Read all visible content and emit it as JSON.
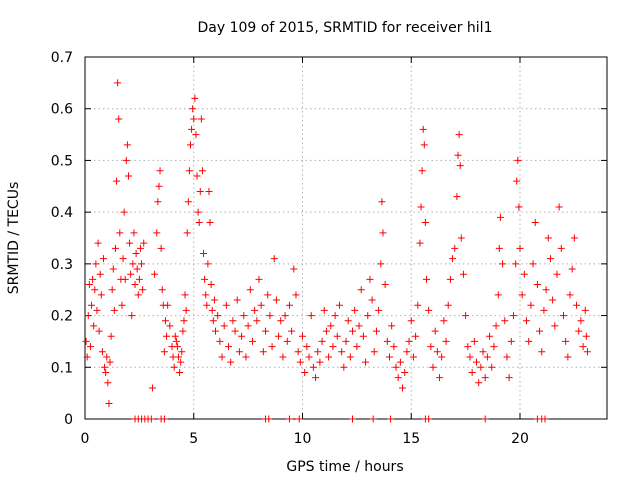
{
  "chart_data": {
    "type": "scatter",
    "title": "Day 109 of 2015, SRMTID for receiver hil1",
    "xlabel": "GPS time / hours",
    "ylabel": "SRMTID / TECUs",
    "xlim": [
      0,
      24
    ],
    "ylim": [
      0,
      0.7
    ],
    "xticks": [
      0,
      5,
      10,
      15,
      20
    ],
    "xtick_labels": [
      "0",
      "5",
      "10",
      "15",
      "20"
    ],
    "yticks": [
      0,
      0.1,
      0.2,
      0.3,
      0.4,
      0.5,
      0.6,
      0.7
    ],
    "ytick_labels": [
      "0",
      "0.1",
      "0.2",
      "0.3",
      "0.4",
      "0.5",
      "0.6",
      "0.7"
    ],
    "grid": true,
    "marker": "+",
    "series": [
      {
        "name": "SRMTID",
        "color": "#ff0000",
        "points": [
          [
            0.05,
            0.15
          ],
          [
            0.1,
            0.12
          ],
          [
            0.15,
            0.2
          ],
          [
            0.2,
            0.26
          ],
          [
            0.25,
            0.14
          ],
          [
            0.3,
            0.22
          ],
          [
            0.35,
            0.27
          ],
          [
            0.4,
            0.18
          ],
          [
            0.45,
            0.25
          ],
          [
            0.5,
            0.3
          ],
          [
            0.55,
            0.21
          ],
          [
            0.6,
            0.34
          ],
          [
            0.65,
            0.17
          ],
          [
            0.7,
            0.28
          ],
          [
            0.75,
            0.24
          ],
          [
            0.8,
            0.13
          ],
          [
            0.85,
            0.31
          ],
          [
            0.9,
            0.1
          ],
          [
            0.95,
            0.09
          ],
          [
            1.0,
            0.12
          ],
          [
            1.05,
            0.07
          ],
          [
            1.1,
            0.03
          ],
          [
            1.15,
            0.11
          ],
          [
            1.2,
            0.16
          ],
          [
            1.25,
            0.25
          ],
          [
            1.3,
            0.29
          ],
          [
            1.35,
            0.21
          ],
          [
            1.4,
            0.33
          ],
          [
            1.45,
            0.46
          ],
          [
            1.5,
            0.65
          ],
          [
            1.55,
            0.58
          ],
          [
            1.6,
            0.36
          ],
          [
            1.65,
            0.27
          ],
          [
            1.7,
            0.22
          ],
          [
            1.75,
            0.31
          ],
          [
            1.8,
            0.4
          ],
          [
            1.85,
            0.27
          ],
          [
            1.9,
            0.5
          ],
          [
            1.95,
            0.53
          ],
          [
            2.0,
            0.47
          ],
          [
            2.05,
            0.34
          ],
          [
            2.1,
            0.28
          ],
          [
            2.15,
            0.2
          ],
          [
            2.2,
            0.3
          ],
          [
            2.25,
            0.36
          ],
          [
            2.3,
            0.26
          ],
          [
            2.35,
            0.32
          ],
          [
            2.4,
            0.29
          ],
          [
            2.45,
            0.24
          ],
          [
            2.5,
            0.27
          ],
          [
            2.55,
            0.33
          ],
          [
            2.6,
            0.3
          ],
          [
            2.65,
            0.25
          ],
          [
            2.7,
            0.34
          ],
          [
            3.1,
            0.06
          ],
          [
            3.2,
            0.28
          ],
          [
            3.3,
            0.36
          ],
          [
            3.35,
            0.42
          ],
          [
            3.4,
            0.45
          ],
          [
            3.45,
            0.48
          ],
          [
            3.5,
            0.33
          ],
          [
            3.55,
            0.25
          ],
          [
            3.6,
            0.22
          ],
          [
            3.65,
            0.13
          ],
          [
            3.7,
            0.19
          ],
          [
            3.75,
            0.16
          ],
          [
            3.8,
            0.22
          ],
          [
            3.9,
            0.18
          ],
          [
            4.0,
            0.14
          ],
          [
            4.05,
            0.12
          ],
          [
            4.1,
            0.1
          ],
          [
            4.15,
            0.16
          ],
          [
            4.2,
            0.15
          ],
          [
            4.25,
            0.14
          ],
          [
            4.3,
            0.12
          ],
          [
            4.35,
            0.09
          ],
          [
            4.4,
            0.11
          ],
          [
            4.45,
            0.13
          ],
          [
            4.5,
            0.17
          ],
          [
            4.55,
            0.19
          ],
          [
            4.6,
            0.24
          ],
          [
            4.65,
            0.21
          ],
          [
            4.7,
            0.36
          ],
          [
            4.75,
            0.42
          ],
          [
            4.8,
            0.48
          ],
          [
            4.85,
            0.53
          ],
          [
            4.9,
            0.56
          ],
          [
            4.95,
            0.6
          ],
          [
            5.0,
            0.58
          ],
          [
            5.05,
            0.62
          ],
          [
            5.1,
            0.55
          ],
          [
            5.15,
            0.47
          ],
          [
            5.2,
            0.4
          ],
          [
            5.25,
            0.38
          ],
          [
            5.3,
            0.44
          ],
          [
            5.35,
            0.58
          ],
          [
            5.4,
            0.48
          ],
          [
            5.45,
            0.32
          ],
          [
            5.5,
            0.27
          ],
          [
            5.55,
            0.24
          ],
          [
            5.6,
            0.22
          ],
          [
            5.65,
            0.3
          ],
          [
            5.7,
            0.44
          ],
          [
            5.75,
            0.38
          ],
          [
            5.8,
            0.26
          ],
          [
            5.85,
            0.21
          ],
          [
            5.9,
            0.19
          ],
          [
            5.95,
            0.23
          ],
          [
            6.0,
            0.17
          ],
          [
            6.1,
            0.2
          ],
          [
            6.2,
            0.15
          ],
          [
            6.3,
            0.12
          ],
          [
            6.4,
            0.18
          ],
          [
            6.5,
            0.22
          ],
          [
            6.6,
            0.14
          ],
          [
            6.7,
            0.11
          ],
          [
            6.8,
            0.19
          ],
          [
            6.9,
            0.17
          ],
          [
            7.0,
            0.23
          ],
          [
            7.1,
            0.13
          ],
          [
            7.2,
            0.16
          ],
          [
            7.3,
            0.2
          ],
          [
            7.4,
            0.12
          ],
          [
            7.5,
            0.18
          ],
          [
            7.6,
            0.25
          ],
          [
            7.7,
            0.15
          ],
          [
            7.8,
            0.21
          ],
          [
            7.9,
            0.19
          ],
          [
            8.0,
            0.27
          ],
          [
            8.1,
            0.22
          ],
          [
            8.2,
            0.13
          ],
          [
            8.3,
            0.17
          ],
          [
            8.4,
            0.24
          ],
          [
            8.5,
            0.2
          ],
          [
            8.6,
            0.14
          ],
          [
            8.7,
            0.31
          ],
          [
            8.8,
            0.23
          ],
          [
            8.9,
            0.16
          ],
          [
            9.0,
            0.19
          ],
          [
            9.1,
            0.12
          ],
          [
            9.2,
            0.2
          ],
          [
            9.3,
            0.15
          ],
          [
            9.4,
            0.22
          ],
          [
            9.5,
            0.17
          ],
          [
            9.6,
            0.29
          ],
          [
            9.7,
            0.24
          ],
          [
            9.8,
            0.13
          ],
          [
            9.9,
            0.11
          ],
          [
            10.0,
            0.16
          ],
          [
            10.1,
            0.09
          ],
          [
            10.2,
            0.14
          ],
          [
            10.3,
            0.12
          ],
          [
            10.4,
            0.2
          ],
          [
            10.5,
            0.1
          ],
          [
            10.6,
            0.08
          ],
          [
            10.7,
            0.13
          ],
          [
            10.8,
            0.11
          ],
          [
            10.9,
            0.15
          ],
          [
            11.0,
            0.21
          ],
          [
            11.1,
            0.17
          ],
          [
            11.2,
            0.12
          ],
          [
            11.3,
            0.18
          ],
          [
            11.4,
            0.14
          ],
          [
            11.5,
            0.2
          ],
          [
            11.6,
            0.16
          ],
          [
            11.7,
            0.22
          ],
          [
            11.8,
            0.13
          ],
          [
            11.9,
            0.1
          ],
          [
            12.0,
            0.15
          ],
          [
            12.1,
            0.19
          ],
          [
            12.2,
            0.12
          ],
          [
            12.3,
            0.17
          ],
          [
            12.4,
            0.21
          ],
          [
            12.5,
            0.14
          ],
          [
            12.6,
            0.18
          ],
          [
            12.7,
            0.25
          ],
          [
            12.8,
            0.16
          ],
          [
            12.9,
            0.11
          ],
          [
            13.0,
            0.2
          ],
          [
            13.1,
            0.27
          ],
          [
            13.2,
            0.23
          ],
          [
            13.3,
            0.13
          ],
          [
            13.4,
            0.17
          ],
          [
            13.5,
            0.21
          ],
          [
            13.6,
            0.3
          ],
          [
            13.65,
            0.42
          ],
          [
            13.7,
            0.36
          ],
          [
            13.8,
            0.26
          ],
          [
            13.9,
            0.15
          ],
          [
            14.0,
            0.12
          ],
          [
            14.1,
            0.18
          ],
          [
            14.2,
            0.14
          ],
          [
            14.3,
            0.1
          ],
          [
            14.4,
            0.08
          ],
          [
            14.5,
            0.11
          ],
          [
            14.6,
            0.06
          ],
          [
            14.7,
            0.09
          ],
          [
            14.8,
            0.13
          ],
          [
            14.9,
            0.15
          ],
          [
            15.0,
            0.19
          ],
          [
            15.1,
            0.12
          ],
          [
            15.2,
            0.16
          ],
          [
            15.3,
            0.22
          ],
          [
            15.4,
            0.34
          ],
          [
            15.45,
            0.41
          ],
          [
            15.5,
            0.48
          ],
          [
            15.55,
            0.56
          ],
          [
            15.6,
            0.53
          ],
          [
            15.65,
            0.38
          ],
          [
            15.7,
            0.27
          ],
          [
            15.8,
            0.21
          ],
          [
            15.9,
            0.14
          ],
          [
            16.0,
            0.1
          ],
          [
            16.1,
            0.17
          ],
          [
            16.2,
            0.13
          ],
          [
            16.3,
            0.08
          ],
          [
            16.4,
            0.12
          ],
          [
            16.5,
            0.19
          ],
          [
            16.6,
            0.15
          ],
          [
            16.7,
            0.22
          ],
          [
            16.8,
            0.27
          ],
          [
            16.9,
            0.31
          ],
          [
            17.0,
            0.33
          ],
          [
            17.1,
            0.43
          ],
          [
            17.15,
            0.51
          ],
          [
            17.2,
            0.55
          ],
          [
            17.25,
            0.49
          ],
          [
            17.3,
            0.35
          ],
          [
            17.4,
            0.28
          ],
          [
            17.5,
            0.2
          ],
          [
            17.6,
            0.14
          ],
          [
            17.7,
            0.12
          ],
          [
            17.8,
            0.09
          ],
          [
            17.9,
            0.15
          ],
          [
            18.0,
            0.11
          ],
          [
            18.1,
            0.07
          ],
          [
            18.2,
            0.1
          ],
          [
            18.3,
            0.13
          ],
          [
            18.4,
            0.08
          ],
          [
            18.5,
            0.12
          ],
          [
            18.6,
            0.16
          ],
          [
            18.7,
            0.1
          ],
          [
            18.8,
            0.14
          ],
          [
            18.9,
            0.18
          ],
          [
            19.0,
            0.24
          ],
          [
            19.05,
            0.33
          ],
          [
            19.1,
            0.39
          ],
          [
            19.2,
            0.3
          ],
          [
            19.3,
            0.19
          ],
          [
            19.4,
            0.12
          ],
          [
            19.5,
            0.08
          ],
          [
            19.6,
            0.15
          ],
          [
            19.7,
            0.2
          ],
          [
            19.8,
            0.3
          ],
          [
            19.85,
            0.46
          ],
          [
            19.9,
            0.5
          ],
          [
            19.95,
            0.41
          ],
          [
            20.0,
            0.33
          ],
          [
            20.1,
            0.24
          ],
          [
            20.2,
            0.28
          ],
          [
            20.3,
            0.19
          ],
          [
            20.4,
            0.15
          ],
          [
            20.5,
            0.22
          ],
          [
            20.6,
            0.3
          ],
          [
            20.7,
            0.38
          ],
          [
            20.8,
            0.26
          ],
          [
            20.9,
            0.17
          ],
          [
            21.0,
            0.13
          ],
          [
            21.1,
            0.21
          ],
          [
            21.2,
            0.25
          ],
          [
            21.3,
            0.35
          ],
          [
            21.4,
            0.31
          ],
          [
            21.5,
            0.23
          ],
          [
            21.6,
            0.18
          ],
          [
            21.7,
            0.28
          ],
          [
            21.8,
            0.41
          ],
          [
            21.9,
            0.33
          ],
          [
            22.0,
            0.2
          ],
          [
            22.1,
            0.15
          ],
          [
            22.2,
            0.12
          ],
          [
            22.3,
            0.24
          ],
          [
            22.4,
            0.29
          ],
          [
            22.5,
            0.35
          ],
          [
            22.6,
            0.22
          ],
          [
            22.7,
            0.17
          ],
          [
            22.8,
            0.19
          ],
          [
            22.9,
            0.14
          ],
          [
            23.0,
            0.21
          ],
          [
            23.05,
            0.16
          ],
          [
            23.1,
            0.13
          ],
          [
            2.3,
            0.0
          ],
          [
            2.45,
            0.0
          ],
          [
            2.6,
            0.0
          ],
          [
            2.75,
            0.0
          ],
          [
            2.9,
            0.0
          ],
          [
            3.05,
            0.0
          ],
          [
            3.5,
            0.0
          ],
          [
            3.65,
            0.0
          ],
          [
            8.3,
            0.0
          ],
          [
            8.45,
            0.0
          ],
          [
            9.4,
            0.0
          ],
          [
            9.85,
            0.0
          ],
          [
            12.3,
            0.0
          ],
          [
            13.25,
            0.0
          ],
          [
            14.05,
            0.0
          ],
          [
            15.65,
            0.0
          ],
          [
            15.8,
            0.0
          ],
          [
            18.4,
            0.0
          ],
          [
            20.8,
            0.0
          ],
          [
            21.0,
            0.0
          ],
          [
            21.15,
            0.0
          ]
        ]
      }
    ]
  }
}
